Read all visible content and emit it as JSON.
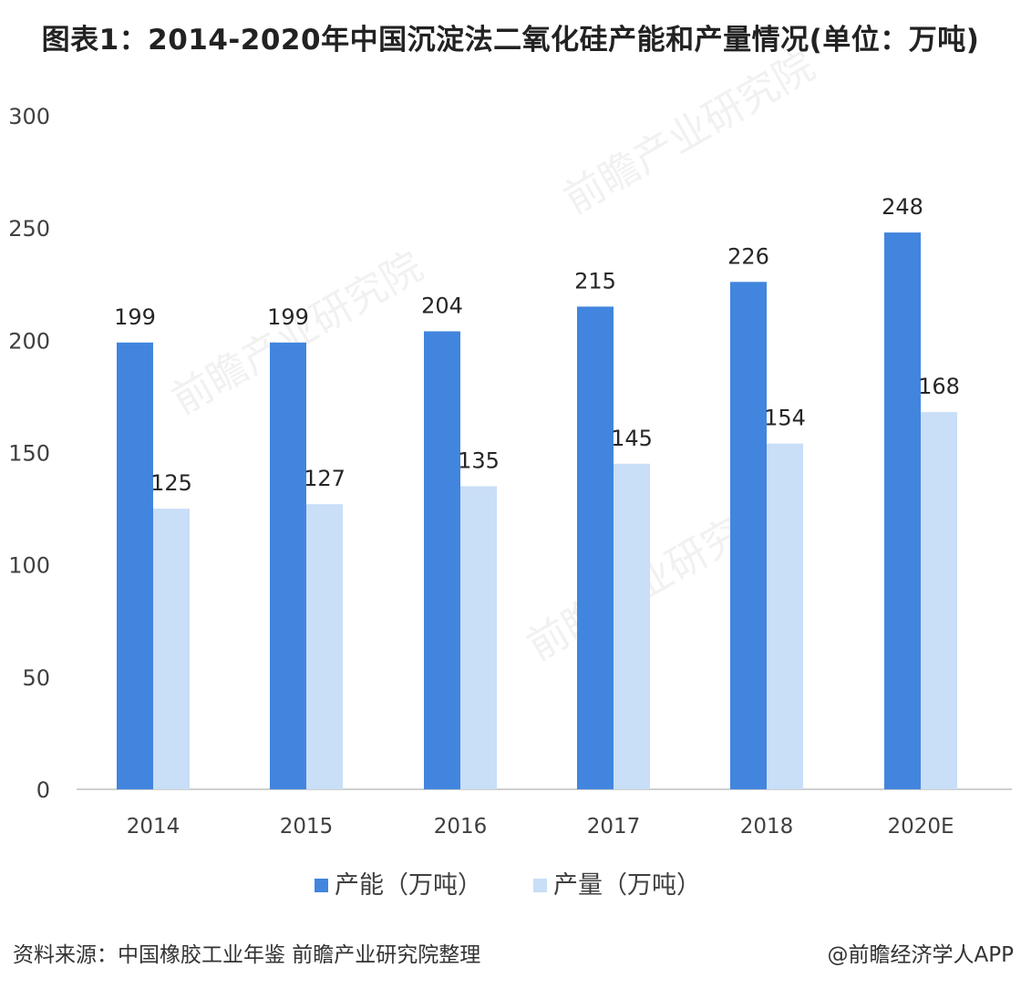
{
  "title": "图表1：2014-2020年中国沉淀法二氧化硅产能和产量情况(单位：万吨)",
  "source": "资料来源：中国橡胶工业年鉴 前瞻产业研究院整理",
  "credit": "@前瞻经济学人APP",
  "watermark": "前瞻产业研究院",
  "colors": {
    "capacity": "#4285DE",
    "output": "#C9DEF7",
    "axis": "#BFBFBF",
    "text": "#333333"
  },
  "chart_data": {
    "type": "bar",
    "categories": [
      "2014",
      "2015",
      "2016",
      "2017",
      "2018",
      "2020E"
    ],
    "series": [
      {
        "name": "产能（万吨）",
        "values": [
          199,
          199,
          204,
          215,
          226,
          248
        ]
      },
      {
        "name": "产量（万吨）",
        "values": [
          125,
          127,
          135,
          145,
          154,
          168
        ]
      }
    ],
    "ylim": [
      0,
      300
    ],
    "yticks": [
      0,
      50,
      100,
      150,
      200,
      250,
      300
    ],
    "grid": false,
    "legend": "bottom",
    "data_labels": true
  }
}
